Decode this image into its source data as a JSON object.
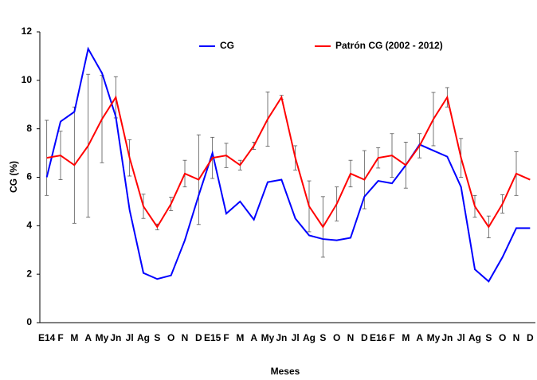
{
  "chart_data": {
    "type": "line",
    "y_label": "CG (%)",
    "x_label": "Meses",
    "categories": [
      "E14",
      "F",
      "M",
      "A",
      "My",
      "Jn",
      "Jl",
      "Ag",
      "S",
      "O",
      "N",
      "D",
      "E15",
      "F",
      "M",
      "A",
      "My",
      "Jn",
      "Jl",
      "Ag",
      "S",
      "O",
      "N",
      "D",
      "E16",
      "F",
      "M",
      "A",
      "My",
      "Jn",
      "Jl",
      "Ag",
      "S",
      "O",
      "N",
      "D"
    ],
    "series": [
      {
        "name": "CG",
        "color": "#0000ff",
        "values": [
          6.0,
          8.3,
          8.7,
          11.3,
          10.3,
          8.5,
          4.65,
          2.05,
          1.8,
          1.95,
          3.4,
          5.25,
          7.0,
          4.5,
          5.0,
          4.25,
          5.8,
          5.9,
          4.3,
          3.6,
          3.45,
          3.4,
          3.5,
          5.2,
          5.85,
          5.75,
          6.5,
          7.35,
          7.1,
          6.85,
          5.6,
          2.2,
          1.7,
          2.7,
          3.9,
          3.9
        ]
      },
      {
        "name": "Patrón CG (2002 - 2012)",
        "color": "#ff0000",
        "values": [
          6.8,
          6.9,
          6.5,
          7.3,
          8.4,
          9.3,
          6.8,
          4.8,
          3.95,
          4.9,
          6.15,
          5.9,
          6.8,
          6.9,
          6.5,
          7.3,
          8.4,
          9.3,
          6.8,
          4.8,
          3.95,
          4.9,
          6.15,
          5.9,
          6.8,
          6.9,
          6.5,
          7.3,
          8.4,
          9.3,
          6.8,
          4.8,
          3.95,
          4.9,
          6.15,
          5.9
        ],
        "errors": [
          1.55,
          1.0,
          2.4,
          2.95,
          1.8,
          0.85,
          0.75,
          0.5,
          0.12,
          0.28,
          0.55,
          1.85,
          0.85,
          0.5,
          0.2,
          0.15,
          1.12,
          0.08,
          0.5,
          1.05,
          1.25,
          0.7,
          0.55,
          1.2,
          0.42,
          0.9,
          0.95,
          0.5,
          1.1,
          0.4,
          0.8,
          0.45,
          0.45,
          0.38,
          0.9,
          null
        ]
      }
    ],
    "ylim": [
      0,
      12
    ],
    "yticks": [
      0,
      2,
      4,
      6,
      8,
      10,
      12
    ],
    "grid": false,
    "legend": "top"
  }
}
